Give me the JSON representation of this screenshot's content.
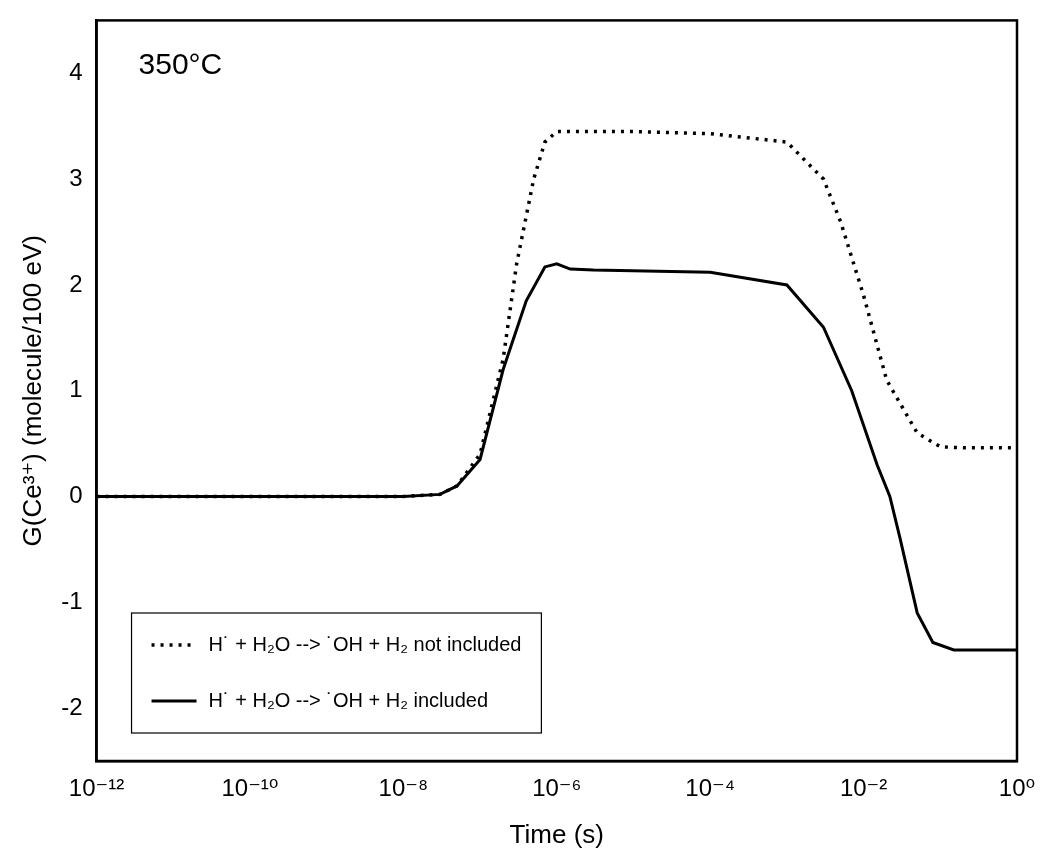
{
  "chart_data": {
    "type": "line",
    "annotation": "350°C",
    "x_label": "Time (s)",
    "y_label": "G(Ce³⁺) (molecule/100 eV)",
    "log": "x",
    "xlim": [
      1e-12,
      1
    ],
    "xticks": [
      {
        "value": 1e-12,
        "label": "10⁻¹²"
      },
      {
        "value": 1e-10,
        "label": "10⁻¹⁰"
      },
      {
        "value": 1e-08,
        "label": "10⁻⁸"
      },
      {
        "value": 1e-06,
        "label": "10⁻⁶"
      },
      {
        "value": 0.0001,
        "label": "10⁻⁴"
      },
      {
        "value": 0.01,
        "label": "10⁻²"
      },
      {
        "value": 1,
        "label": "10⁰"
      }
    ],
    "ylim": [
      -2.5,
      4.5
    ],
    "yticks": [
      -2,
      -1,
      0,
      1,
      2,
      3,
      4
    ],
    "grid": false,
    "legend": "lower left",
    "series": [
      {
        "name": "H˙ + H₂O --> ˙OH + H₂ not included",
        "color": "#000000",
        "line_style": "dotted",
        "x": [
          1e-12,
          1e-10,
          1e-08,
          3e-08,
          5e-08,
          1e-07,
          2e-07,
          3e-07,
          5e-07,
          7e-07,
          1e-06,
          1e-05,
          0.0001,
          0.001,
          0.003,
          0.005,
          0.01,
          0.02,
          0.05,
          0.1,
          0.2,
          1
        ],
        "values": [
          0,
          0,
          0,
          0.02,
          0.1,
          0.4,
          1.3,
          2.2,
          3.0,
          3.35,
          3.45,
          3.45,
          3.43,
          3.35,
          3.0,
          2.6,
          1.9,
          1.1,
          0.6,
          0.47,
          0.46,
          0.46
        ]
      },
      {
        "name": "H˙ + H₂O --> ˙OH + H₂ included",
        "color": "#000000",
        "line_style": "solid",
        "x": [
          1e-12,
          1e-10,
          1e-08,
          3e-08,
          5e-08,
          1e-07,
          2e-07,
          4e-07,
          7e-07,
          1e-06,
          1.5e-06,
          3e-06,
          0.0001,
          0.001,
          0.003,
          0.007,
          0.015,
          0.022,
          0.03,
          0.05,
          0.08,
          0.15,
          1
        ],
        "values": [
          0,
          0,
          0,
          0.02,
          0.1,
          0.35,
          1.2,
          1.85,
          2.17,
          2.2,
          2.15,
          2.14,
          2.12,
          2.0,
          1.6,
          1.0,
          0.3,
          0.0,
          -0.4,
          -1.1,
          -1.38,
          -1.45,
          -1.45
        ]
      }
    ]
  }
}
